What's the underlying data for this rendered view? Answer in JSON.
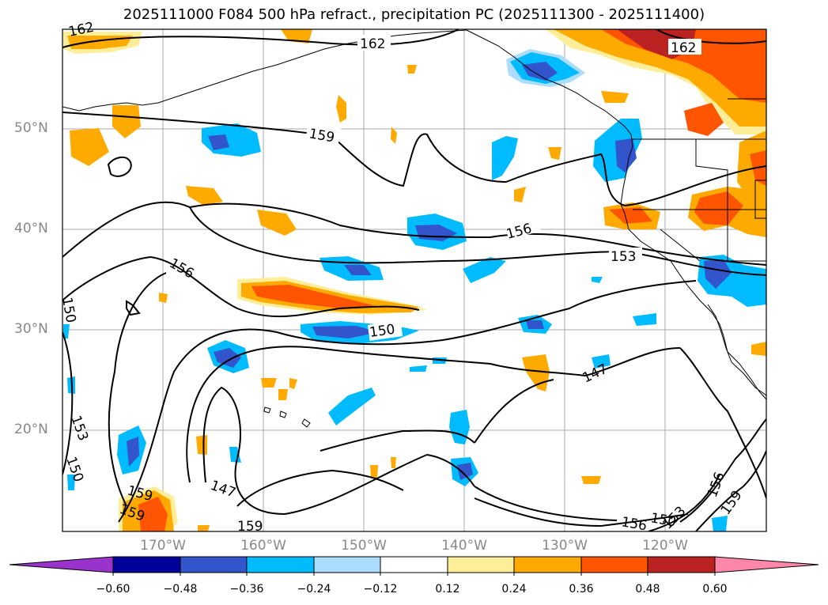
{
  "title": "2025111000 F084 500 hPa refract., precipitation PC (2025111300 - 2025111400)",
  "map": {
    "latitude_labels": [
      "50°N",
      "40°N",
      "30°N",
      "20°N"
    ],
    "longitude_labels": [
      "170°W",
      "160°W",
      "150°W",
      "140°W",
      "130°W",
      "120°W"
    ],
    "contour_labels": [
      "162",
      "162",
      "162",
      "159",
      "156",
      "156",
      "153",
      "150",
      "150",
      "147",
      "153",
      "150",
      "159",
      "159",
      "147",
      "159",
      "156",
      "150",
      "153",
      "156",
      "159"
    ]
  },
  "colorbar": {
    "colors": [
      "#9933cc",
      "#000099",
      "#3355cc",
      "#00bbff",
      "#aaddff",
      "#ffffff",
      "#ffee99",
      "#ffaa00",
      "#ff5500",
      "#bb2222",
      "#ff88aa"
    ],
    "tick_labels": [
      "−0.60",
      "−0.48",
      "−0.36",
      "−0.24",
      "−0.12",
      "0.12",
      "0.24",
      "0.36",
      "0.48",
      "0.60"
    ]
  }
}
